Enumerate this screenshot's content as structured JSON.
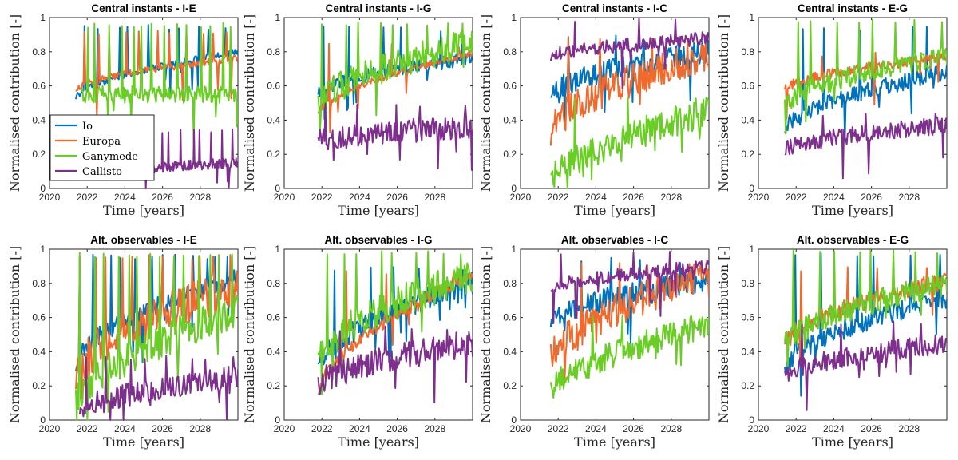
{
  "chart_data": {
    "type": "line",
    "layout": "2x4 grid",
    "legend": {
      "placement": "lower-left of first panel",
      "entries": [
        "Io",
        "Europa",
        "Ganymede",
        "Callisto"
      ]
    },
    "series_colors": {
      "Io": "#0072BD",
      "Europa": "#F0692D",
      "Ganymede": "#6ACD25",
      "Callisto": "#7E2F8E"
    },
    "x_range": [
      2020,
      2030
    ],
    "y_range": [
      0,
      1
    ],
    "x_ticks": [
      "2020",
      "2022",
      "2024",
      "2026",
      "2028"
    ],
    "y_ticks": [
      "0",
      "0.2",
      "0.4",
      "0.6",
      "0.8",
      "1"
    ],
    "xlabel": "Time [years]",
    "ylabel": "Normalised contribution [-]",
    "panels": [
      {
        "title": "Central instants - I-E",
        "series": [
          {
            "name": "Io",
            "start": 2021.4,
            "end": 2030,
            "from": 0.53,
            "to": 0.8,
            "noise": 0.02,
            "spike_top": 0.96,
            "spikes": 10
          },
          {
            "name": "Europa",
            "start": 2021.4,
            "end": 2030,
            "from": 0.58,
            "to": 0.76,
            "noise": 0.02,
            "spike_top": 0.93,
            "spikes": 11
          },
          {
            "name": "Ganymede",
            "start": 2021.7,
            "end": 2030,
            "from": 0.55,
            "to": 0.55,
            "noise": 0.05,
            "spike_top": 0.97,
            "spikes": 14
          },
          {
            "name": "Callisto",
            "start": 2024.5,
            "end": 2030,
            "from": 0.1,
            "to": 0.15,
            "noise": 0.03,
            "spike_top": 0.35,
            "spikes": 10
          }
        ]
      },
      {
        "title": "Central instants - I-G",
        "series": [
          {
            "name": "Io",
            "start": 2021.8,
            "end": 2030,
            "from": 0.56,
            "to": 0.76,
            "noise": 0.04,
            "spike_top": 0.95,
            "spikes": 6
          },
          {
            "name": "Europa",
            "start": 2021.8,
            "end": 2030,
            "from": 0.44,
            "to": 0.79,
            "noise": 0.02,
            "spike_top": 0.85,
            "spikes": 3
          },
          {
            "name": "Ganymede",
            "start": 2021.8,
            "end": 2030,
            "from": 0.48,
            "to": 0.85,
            "noise": 0.09,
            "spike_top": 0.98,
            "spikes": 9
          },
          {
            "name": "Callisto",
            "start": 2021.8,
            "end": 2030,
            "from": 0.27,
            "to": 0.36,
            "noise": 0.07,
            "spike_top": 0.5,
            "spikes": 5
          }
        ]
      },
      {
        "title": "Central instants - I-C",
        "series": [
          {
            "name": "Io",
            "start": 2021.6,
            "end": 2030,
            "from": 0.54,
            "to": 0.8,
            "noise": 0.07,
            "spike_top": 0.9,
            "spikes": 4
          },
          {
            "name": "Europa",
            "start": 2021.6,
            "end": 2030,
            "from": 0.33,
            "to": 0.78,
            "noise": 0.1,
            "spike_top": 0.9,
            "spikes": 4
          },
          {
            "name": "Ganymede",
            "start": 2021.6,
            "end": 2030,
            "from": 0.02,
            "to": 0.45,
            "noise": 0.09,
            "spike_top": 0.55,
            "spikes": 3
          },
          {
            "name": "Callisto",
            "start": 2021.6,
            "end": 2030,
            "from": 0.77,
            "to": 0.88,
            "noise": 0.04,
            "spike_top": 1.0,
            "spikes": 3
          }
        ]
      },
      {
        "title": "Central instants - E-G",
        "series": [
          {
            "name": "Io",
            "start": 2021.4,
            "end": 2030,
            "from": 0.34,
            "to": 0.68,
            "noise": 0.05,
            "spike_top": 0.95,
            "spikes": 6
          },
          {
            "name": "Europa",
            "start": 2021.4,
            "end": 2030,
            "from": 0.58,
            "to": 0.77,
            "noise": 0.03,
            "spike_top": 0.8,
            "spikes": 3
          },
          {
            "name": "Ganymede",
            "start": 2021.4,
            "end": 2030,
            "from": 0.48,
            "to": 0.78,
            "noise": 0.06,
            "spike_top": 0.99,
            "spikes": 8
          },
          {
            "name": "Callisto",
            "start": 2021.4,
            "end": 2030,
            "from": 0.23,
            "to": 0.37,
            "noise": 0.05,
            "spike_top": 0.45,
            "spikes": 3
          }
        ]
      },
      {
        "title": "Alt. observables - I-E",
        "series": [
          {
            "name": "Io",
            "start": 2021.4,
            "end": 2030,
            "from": 0.34,
            "to": 0.83,
            "noise": 0.06,
            "spike_top": 0.97,
            "spikes": 12
          },
          {
            "name": "Europa",
            "start": 2021.4,
            "end": 2030,
            "from": 0.25,
            "to": 0.78,
            "noise": 0.12,
            "spike_top": 0.97,
            "spikes": 12
          },
          {
            "name": "Ganymede",
            "start": 2021.4,
            "end": 2030,
            "from": 0.08,
            "to": 0.64,
            "noise": 0.1,
            "spike_top": 0.98,
            "spikes": 14
          },
          {
            "name": "Callisto",
            "start": 2021.6,
            "end": 2030,
            "from": 0.05,
            "to": 0.25,
            "noise": 0.07,
            "spike_top": 0.38,
            "spikes": 8
          }
        ]
      },
      {
        "title": "Alt. observables - I-G",
        "series": [
          {
            "name": "Io",
            "start": 2021.8,
            "end": 2030,
            "from": 0.32,
            "to": 0.8,
            "noise": 0.07,
            "spike_top": 0.9,
            "spikes": 5
          },
          {
            "name": "Europa",
            "start": 2021.8,
            "end": 2030,
            "from": 0.15,
            "to": 0.85,
            "noise": 0.04,
            "spike_top": 0.88,
            "spikes": 3
          },
          {
            "name": "Ganymede",
            "start": 2021.8,
            "end": 2030,
            "from": 0.35,
            "to": 0.85,
            "noise": 0.1,
            "spike_top": 1.0,
            "spikes": 9
          },
          {
            "name": "Callisto",
            "start": 2021.8,
            "end": 2030,
            "from": 0.2,
            "to": 0.45,
            "noise": 0.08,
            "spike_top": 0.55,
            "spikes": 4
          }
        ]
      },
      {
        "title": "Alt. observables - I-C",
        "series": [
          {
            "name": "Io",
            "start": 2021.6,
            "end": 2030,
            "from": 0.57,
            "to": 0.82,
            "noise": 0.07,
            "spike_top": 0.95,
            "spikes": 4
          },
          {
            "name": "Europa",
            "start": 2021.6,
            "end": 2030,
            "from": 0.35,
            "to": 0.85,
            "noise": 0.1,
            "spike_top": 0.92,
            "spikes": 4
          },
          {
            "name": "Ganymede",
            "start": 2021.6,
            "end": 2030,
            "from": 0.16,
            "to": 0.55,
            "noise": 0.08,
            "spike_top": 0.62,
            "spikes": 3
          },
          {
            "name": "Callisto",
            "start": 2021.6,
            "end": 2030,
            "from": 0.77,
            "to": 0.9,
            "noise": 0.04,
            "spike_top": 0.99,
            "spikes": 3
          }
        ]
      },
      {
        "title": "Alt. observables - E-G",
        "series": [
          {
            "name": "Io",
            "start": 2021.4,
            "end": 2030,
            "from": 0.3,
            "to": 0.72,
            "noise": 0.06,
            "spike_top": 0.98,
            "spikes": 6
          },
          {
            "name": "Europa",
            "start": 2021.4,
            "end": 2030,
            "from": 0.45,
            "to": 0.82,
            "noise": 0.05,
            "spike_top": 0.9,
            "spikes": 4
          },
          {
            "name": "Ganymede",
            "start": 2021.4,
            "end": 2030,
            "from": 0.43,
            "to": 0.8,
            "noise": 0.07,
            "spike_top": 1.0,
            "spikes": 8
          },
          {
            "name": "Callisto",
            "start": 2021.4,
            "end": 2030,
            "from": 0.26,
            "to": 0.45,
            "noise": 0.06,
            "spike_top": 0.58,
            "spikes": 4
          }
        ]
      }
    ]
  }
}
